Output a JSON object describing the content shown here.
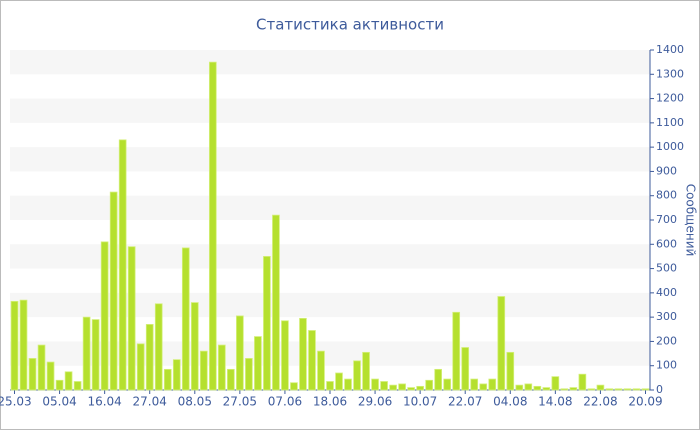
{
  "chart_data": {
    "type": "bar",
    "title": "Статистика активности",
    "y_label": "Сообщений",
    "categories": [
      "25.03",
      null,
      null,
      null,
      null,
      "05.04",
      null,
      null,
      null,
      null,
      "16.04",
      null,
      null,
      null,
      null,
      "27.04",
      null,
      null,
      null,
      null,
      "08.05",
      null,
      null,
      null,
      null,
      "27.05",
      null,
      null,
      null,
      null,
      "07.06",
      null,
      null,
      null,
      null,
      "18.06",
      null,
      null,
      null,
      null,
      "29.06",
      null,
      null,
      null,
      null,
      "10.07",
      null,
      null,
      null,
      null,
      "22.07",
      null,
      null,
      null,
      null,
      "04.08",
      null,
      null,
      null,
      null,
      "14.08",
      null,
      null,
      null,
      null,
      "22.08",
      null,
      null,
      null,
      null,
      "20.09"
    ],
    "values": [
      365,
      370,
      130,
      185,
      115,
      40,
      75,
      35,
      300,
      290,
      610,
      815,
      1030,
      590,
      190,
      270,
      355,
      85,
      125,
      585,
      360,
      160,
      1350,
      185,
      85,
      305,
      130,
      220,
      550,
      720,
      285,
      30,
      295,
      245,
      160,
      35,
      70,
      45,
      120,
      155,
      45,
      35,
      20,
      25,
      10,
      15,
      40,
      85,
      45,
      320,
      175,
      45,
      25,
      45,
      385,
      155,
      20,
      25,
      15,
      10,
      55,
      5,
      10,
      65,
      5,
      20,
      5,
      5,
      5,
      5,
      5
    ],
    "color": "#b5e02e",
    "ylim": [
      0,
      1400
    ],
    "yticks": [
      0,
      100,
      200,
      300,
      400,
      500,
      600,
      700,
      800,
      900,
      1000,
      1100,
      1200,
      1300,
      1400
    ],
    "grid": true
  }
}
